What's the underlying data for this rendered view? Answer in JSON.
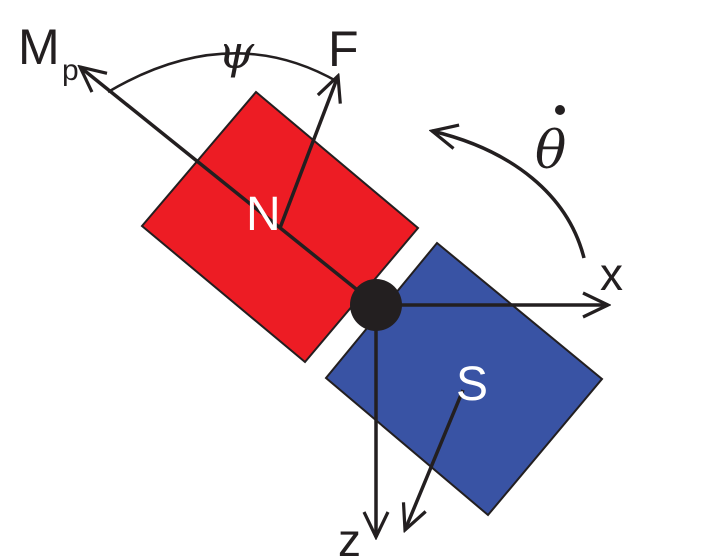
{
  "colors": {
    "north_pole": "#ed1c24",
    "south_pole": "#3953a4",
    "stroke": "#231f20",
    "background": "#ffffff"
  },
  "labels": {
    "north": "N",
    "south": "S",
    "moment_main": "M",
    "moment_sub": "p",
    "force": "F",
    "angle_psi": "ψ",
    "angular_rate": "θ",
    "axis_x": "x",
    "axis_z": "z"
  }
}
